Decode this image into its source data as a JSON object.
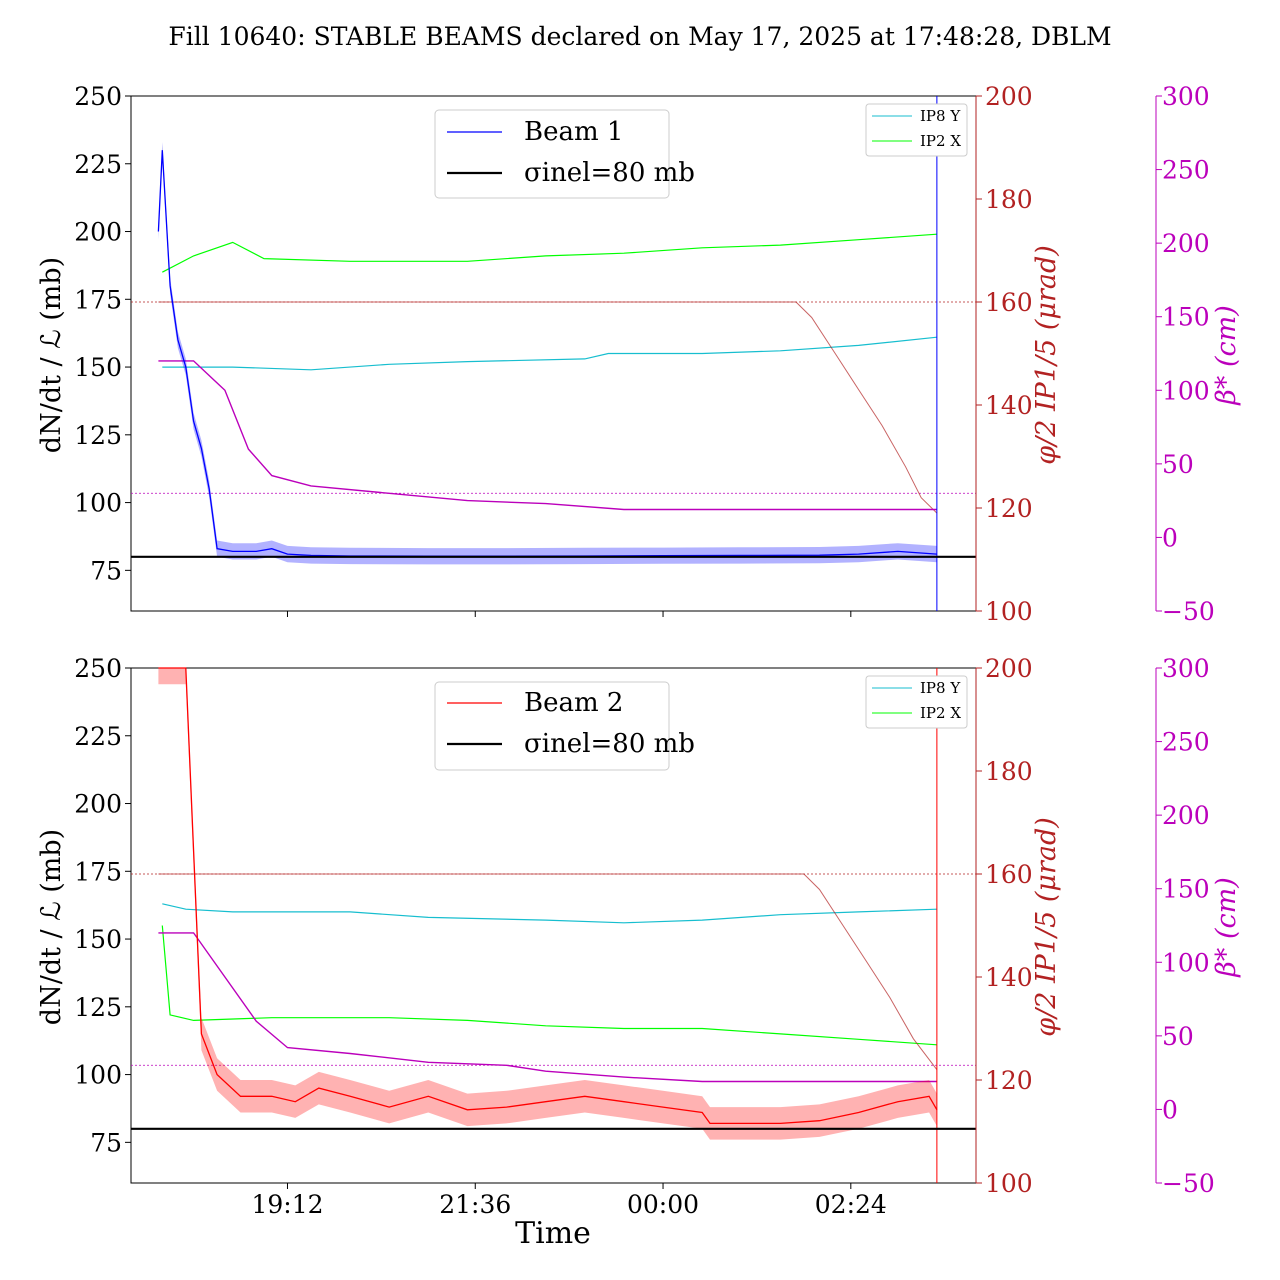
{
  "chart_data": {
    "title": "Fill 10640: STABLE BEAMS declared on May 17, 2025 at 17:48:28, DBLM",
    "type": "line",
    "xlabel": "Time",
    "x_ticks": [
      "19:12",
      "21:36",
      "00:00",
      "02:24"
    ],
    "colors": {
      "beam1": "#0000ff",
      "beam2": "#ff0000",
      "ip8y": "#17becf",
      "ip2x": "#00ff00",
      "crossing": "#b22222",
      "beta": "#bb00bb",
      "sigma": "#000000"
    },
    "panels": [
      {
        "beam": "Beam 1",
        "legend_beam": "Beam 1",
        "legend_sigma": "σinel=80 mb",
        "legend_small": [
          "IP8 Y",
          "IP2 X"
        ],
        "ylabel_left": "dN/dt / ℒ (mb)",
        "ylabel_mid": "φ/2 IP1/5 (μrad)",
        "ylabel_right": "β* (cm)",
        "yticks_left": [
          "75",
          "100",
          "125",
          "150",
          "175",
          "200",
          "225",
          "250"
        ],
        "yticks_mid": [
          "100",
          "120",
          "140",
          "160",
          "180",
          "200"
        ],
        "yticks_right": [
          "−50",
          "0",
          "50",
          "100",
          "150",
          "200",
          "250",
          "300"
        ],
        "ylim_left": [
          60,
          250
        ],
        "ylim_mid": [
          100,
          200
        ],
        "ylim_right": [
          -50,
          300
        ],
        "sigma_inel": 80,
        "beam_series": [
          [
            17.55,
            200
          ],
          [
            17.6,
            230
          ],
          [
            17.7,
            180
          ],
          [
            17.8,
            160
          ],
          [
            17.9,
            150
          ],
          [
            18.0,
            130
          ],
          [
            18.1,
            120
          ],
          [
            18.2,
            105
          ],
          [
            18.3,
            83
          ],
          [
            18.5,
            82
          ],
          [
            18.8,
            82
          ],
          [
            19.0,
            83
          ],
          [
            19.2,
            81
          ],
          [
            19.5,
            80.5
          ],
          [
            20.0,
            80.3
          ],
          [
            21.0,
            80.2
          ],
          [
            22.0,
            80.2
          ],
          [
            23.0,
            80.3
          ],
          [
            24.0,
            80.4
          ],
          [
            25.0,
            80.5
          ],
          [
            26.0,
            80.6
          ],
          [
            26.5,
            81
          ],
          [
            27.0,
            82
          ],
          [
            27.5,
            81
          ]
        ],
        "ip8y_series": [
          [
            17.6,
            150
          ],
          [
            18.5,
            150
          ],
          [
            19.5,
            149
          ],
          [
            20.5,
            151
          ],
          [
            21.5,
            152
          ],
          [
            23.0,
            153
          ],
          [
            23.3,
            155
          ],
          [
            24.5,
            155
          ],
          [
            25.5,
            156
          ],
          [
            26.5,
            158
          ],
          [
            27.5,
            161
          ]
        ],
        "ip2x_series": [
          [
            17.6,
            185
          ],
          [
            18.0,
            191
          ],
          [
            18.5,
            196
          ],
          [
            18.9,
            190
          ],
          [
            20.0,
            189
          ],
          [
            21.5,
            189
          ],
          [
            22.5,
            191
          ],
          [
            23.5,
            192
          ],
          [
            24.5,
            194
          ],
          [
            25.5,
            195
          ],
          [
            26.5,
            197
          ],
          [
            27.5,
            199
          ]
        ],
        "crossing_series": [
          [
            17.55,
            160
          ],
          [
            25.7,
            160
          ],
          [
            25.9,
            157
          ],
          [
            26.2,
            150
          ],
          [
            26.5,
            143
          ],
          [
            26.8,
            136
          ],
          [
            27.1,
            128
          ],
          [
            27.3,
            122
          ],
          [
            27.5,
            119
          ]
        ],
        "beta_series": [
          [
            17.55,
            120
          ],
          [
            18.0,
            120
          ],
          [
            18.4,
            100
          ],
          [
            18.7,
            60
          ],
          [
            19.0,
            42
          ],
          [
            19.5,
            35
          ],
          [
            20.5,
            30
          ],
          [
            21.5,
            25
          ],
          [
            22.5,
            23
          ],
          [
            23.5,
            19
          ],
          [
            24.5,
            19
          ],
          [
            27.5,
            19
          ]
        ],
        "hline_mid": 160,
        "hline_right": 30
      },
      {
        "beam": "Beam 2",
        "legend_beam": "Beam 2",
        "legend_sigma": "σinel=80 mb",
        "legend_small": [
          "IP8 Y",
          "IP2 X"
        ],
        "ylabel_left": "dN/dt / ℒ (mb)",
        "ylabel_mid": "φ/2 IP1/5 (μrad)",
        "ylabel_right": "β* (cm)",
        "yticks_left": [
          "75",
          "100",
          "125",
          "150",
          "175",
          "200",
          "225",
          "250"
        ],
        "yticks_mid": [
          "100",
          "120",
          "140",
          "160",
          "180",
          "200"
        ],
        "yticks_right": [
          "−50",
          "0",
          "50",
          "100",
          "150",
          "200",
          "250",
          "300"
        ],
        "ylim_left": [
          60,
          250
        ],
        "ylim_mid": [
          100,
          200
        ],
        "ylim_right": [
          -50,
          300
        ],
        "sigma_inel": 80,
        "beam_series": [
          [
            17.55,
            250
          ],
          [
            17.9,
            250
          ],
          [
            18.1,
            115
          ],
          [
            18.3,
            100
          ],
          [
            18.6,
            92
          ],
          [
            19.0,
            92
          ],
          [
            19.3,
            90
          ],
          [
            19.6,
            95
          ],
          [
            20.0,
            92
          ],
          [
            20.5,
            88
          ],
          [
            21.0,
            92
          ],
          [
            21.5,
            87
          ],
          [
            22.0,
            88
          ],
          [
            22.5,
            90
          ],
          [
            23.0,
            92
          ],
          [
            23.5,
            90
          ],
          [
            24.0,
            88
          ],
          [
            24.5,
            86
          ],
          [
            24.6,
            82
          ],
          [
            25.0,
            82
          ],
          [
            25.5,
            82
          ],
          [
            26.0,
            83
          ],
          [
            26.5,
            86
          ],
          [
            27.0,
            90
          ],
          [
            27.4,
            92
          ],
          [
            27.5,
            87
          ]
        ],
        "ip8y_series": [
          [
            17.6,
            163
          ],
          [
            17.9,
            161
          ],
          [
            18.5,
            160
          ],
          [
            20.0,
            160
          ],
          [
            21.0,
            158
          ],
          [
            22.5,
            157
          ],
          [
            23.5,
            156
          ],
          [
            24.5,
            157
          ],
          [
            25.5,
            159
          ],
          [
            26.5,
            160
          ],
          [
            27.5,
            161
          ]
        ],
        "ip2x_series": [
          [
            17.6,
            155
          ],
          [
            17.7,
            122
          ],
          [
            18.0,
            120
          ],
          [
            19.0,
            121
          ],
          [
            20.5,
            121
          ],
          [
            21.5,
            120
          ],
          [
            22.5,
            118
          ],
          [
            23.5,
            117
          ],
          [
            24.5,
            117
          ],
          [
            25.5,
            115
          ],
          [
            26.5,
            113
          ],
          [
            27.5,
            111
          ]
        ],
        "crossing_series": [
          [
            17.55,
            160
          ],
          [
            25.8,
            160
          ],
          [
            26.0,
            157
          ],
          [
            26.3,
            150
          ],
          [
            26.6,
            143
          ],
          [
            26.9,
            136
          ],
          [
            27.2,
            128
          ],
          [
            27.5,
            122
          ]
        ],
        "beta_series": [
          [
            17.55,
            120
          ],
          [
            18.0,
            120
          ],
          [
            18.4,
            90
          ],
          [
            18.8,
            60
          ],
          [
            19.2,
            42
          ],
          [
            20.0,
            38
          ],
          [
            21.0,
            32
          ],
          [
            22.0,
            30
          ],
          [
            22.5,
            26
          ],
          [
            23.5,
            22
          ],
          [
            24.5,
            19
          ],
          [
            27.5,
            19
          ]
        ],
        "hline_mid": 160,
        "hline_right": 30
      }
    ]
  }
}
